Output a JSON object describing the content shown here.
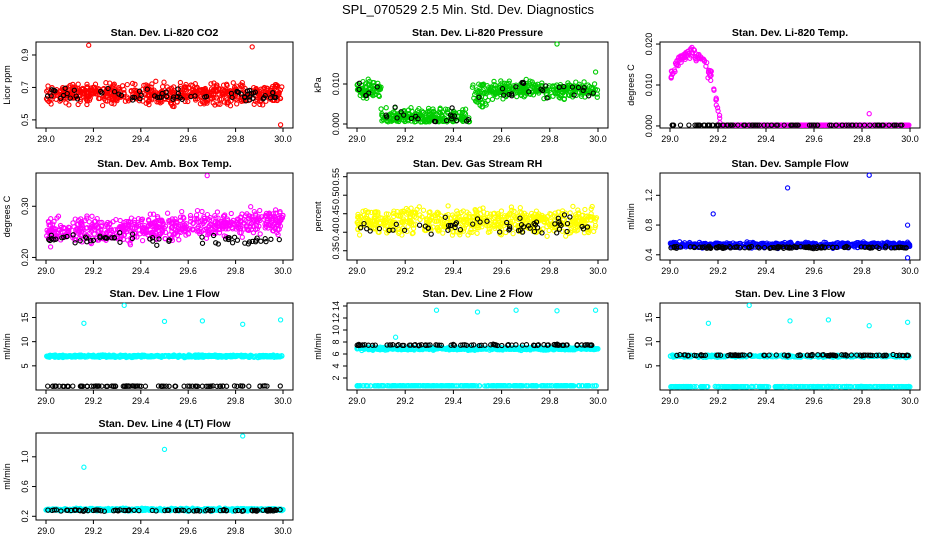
{
  "figure_title": "SPL_070529  2.5 Min. Std. Dev. Diagnostics",
  "colors": {
    "red": "#ff0000",
    "green": "#00cc00",
    "magenta": "#ff00ff",
    "yellow": "#ffff00",
    "blue": "#0000ff",
    "cyan": "#00ffff",
    "black": "#000000"
  },
  "chart_data": [
    {
      "type": "scatter",
      "title": "Stan. Dev. Li-820 CO2",
      "ylabel": "Licor ppm",
      "xlim": [
        29.0,
        30.0
      ],
      "ylim": [
        0.45,
        0.98
      ],
      "xticks": [
        "29.0",
        "29.2",
        "29.4",
        "29.6",
        "29.8",
        "30.0"
      ],
      "yticks": [
        {
          "v": 0.5,
          "l": "0.5"
        },
        {
          "v": 0.7,
          "l": "0.7"
        },
        {
          "v": 0.9,
          "l": "0.9"
        }
      ],
      "series": [
        {
          "name": "main",
          "color": "red",
          "n": 620,
          "base": 0.66,
          "spread": 0.09,
          "outliers": [
            [
              29.18,
              0.96
            ],
            [
              29.87,
              0.95
            ],
            [
              29.99,
              0.47
            ]
          ]
        },
        {
          "name": "ref",
          "color": "black",
          "n": 70,
          "base": 0.65,
          "spread": 0.06
        }
      ]
    },
    {
      "type": "scatter",
      "title": "Stan. Dev. Li-820 Pressure",
      "ylabel": "kPa",
      "xlim": [
        29.0,
        30.0
      ],
      "ylim": [
        -0.001,
        0.0205
      ],
      "xticks": [
        "29.0",
        "29.2",
        "29.4",
        "29.6",
        "29.8",
        "30.0"
      ],
      "yticks": [
        {
          "v": 0.0,
          "l": "0.000"
        },
        {
          "v": 0.01,
          "l": "0.010"
        }
      ],
      "series": [
        {
          "name": "main",
          "color": "green",
          "n": 620,
          "pressure": true,
          "outliers": [
            [
              29.83,
              0.02
            ],
            [
              29.99,
              0.013
            ]
          ]
        },
        {
          "name": "ref",
          "color": "black",
          "n": 50,
          "pressure": true
        }
      ]
    },
    {
      "type": "scatter",
      "title": "Stan. Dev. Li-820 Temp.",
      "ylabel": "degrees C",
      "xlim": [
        29.0,
        30.0
      ],
      "ylim": [
        -0.0005,
        0.0205
      ],
      "xticks": [
        "29.0",
        "29.2",
        "29.4",
        "29.6",
        "29.8",
        "30.0"
      ],
      "yticks": [
        {
          "v": 0.0,
          "l": "0.000"
        },
        {
          "v": 0.01,
          "l": "0.010"
        },
        {
          "v": 0.02,
          "l": "0.020"
        }
      ],
      "series": [
        {
          "name": "main",
          "color": "magenta",
          "n": 420,
          "temp": true,
          "outliers": [
            [
              29.83,
              0.003
            ]
          ]
        },
        {
          "name": "ref",
          "color": "black",
          "n": 90,
          "flat": true
        }
      ]
    },
    {
      "type": "scatter",
      "title": "Stan. Dev. Amb. Box Temp.",
      "ylabel": "degrees C",
      "xlim": [
        29.0,
        30.0
      ],
      "ylim": [
        0.195,
        0.365
      ],
      "xticks": [
        "29.0",
        "29.2",
        "29.4",
        "29.6",
        "29.8",
        "30.0"
      ],
      "yticks": [
        {
          "v": 0.2,
          "l": "0.20"
        },
        {
          "v": 0.3,
          "l": "0.30"
        }
      ],
      "series": [
        {
          "name": "main",
          "color": "magenta",
          "n": 620,
          "base": 0.25,
          "spread": 0.035,
          "trend": 0.02,
          "outliers": [
            [
              29.68,
              0.36
            ]
          ]
        },
        {
          "name": "ref",
          "color": "black",
          "n": 60,
          "base": 0.235,
          "spread": 0.015
        }
      ]
    },
    {
      "type": "scatter",
      "title": "Stan. Dev. Gas Stream RH",
      "ylabel": "percent",
      "xlim": [
        29.0,
        30.0
      ],
      "ylim": [
        0.325,
        0.56
      ],
      "xticks": [
        "29.0",
        "29.2",
        "29.4",
        "29.6",
        "29.8",
        "30.0"
      ],
      "yticks": [
        {
          "v": 0.35,
          "l": "0.35"
        },
        {
          "v": 0.4,
          "l": "0.40"
        },
        {
          "v": 0.45,
          "l": "0.45"
        },
        {
          "v": 0.5,
          "l": "0.50"
        },
        {
          "v": 0.55,
          "l": "0.55"
        }
      ],
      "series": [
        {
          "name": "main",
          "color": "yellow",
          "n": 620,
          "base": 0.43,
          "spread": 0.05
        },
        {
          "name": "ref",
          "color": "black",
          "n": 60,
          "base": 0.42,
          "spread": 0.04
        }
      ]
    },
    {
      "type": "scatter",
      "title": "Stan. Dev. Sample Flow",
      "ylabel": "ml/min",
      "xlim": [
        29.0,
        30.0
      ],
      "ylim": [
        0.33,
        1.5
      ],
      "xticks": [
        "29.0",
        "29.2",
        "29.4",
        "29.6",
        "29.8",
        "30.0"
      ],
      "yticks": [
        {
          "v": 0.4,
          "l": "0.4"
        },
        {
          "v": 0.8,
          "l": "0.8"
        },
        {
          "v": 1.2,
          "l": "1.2"
        }
      ],
      "series": [
        {
          "name": "main",
          "color": "blue",
          "n": 620,
          "base": 0.53,
          "spread": 0.05,
          "outliers": [
            [
              29.18,
              0.95
            ],
            [
              29.49,
              1.3
            ],
            [
              29.83,
              1.47
            ],
            [
              29.99,
              0.36
            ],
            [
              29.99,
              0.8
            ]
          ]
        },
        {
          "name": "ref",
          "color": "black",
          "n": 120,
          "base": 0.5,
          "spread": 0.02
        }
      ]
    },
    {
      "type": "scatter",
      "title": "Stan. Dev. Line 1 Flow",
      "ylabel": "ml/min",
      "xlim": [
        29.0,
        30.0
      ],
      "ylim": [
        0,
        18
      ],
      "xticks": [
        "29.0",
        "29.2",
        "29.4",
        "29.6",
        "29.8",
        "30.0"
      ],
      "yticks": [
        {
          "v": 5,
          "l": "5"
        },
        {
          "v": 10,
          "l": "10"
        },
        {
          "v": 15,
          "l": "15"
        }
      ],
      "series": [
        {
          "name": "main",
          "color": "cyan",
          "n": 620,
          "base": 7.0,
          "spread": 0.35,
          "outliers": [
            [
              29.16,
              13.8
            ],
            [
              29.33,
              17.5
            ],
            [
              29.5,
              14.2
            ],
            [
              29.66,
              14.3
            ],
            [
              29.83,
              13.6
            ],
            [
              29.99,
              14.5
            ]
          ]
        },
        {
          "name": "ref",
          "color": "black",
          "n": 90,
          "base": 0.8,
          "spread": 0.08
        }
      ]
    },
    {
      "type": "scatter",
      "title": "Stan. Dev. Line 2 Flow",
      "ylabel": "ml/min",
      "xlim": [
        29.0,
        30.0
      ],
      "ylim": [
        0,
        14.5
      ],
      "xticks": [
        "29.0",
        "29.2",
        "29.4",
        "29.6",
        "29.8",
        "30.0"
      ],
      "yticks": [
        {
          "v": 2,
          "l": "2"
        },
        {
          "v": 4,
          "l": "4"
        },
        {
          "v": 6,
          "l": "6"
        },
        {
          "v": 8,
          "l": "8"
        },
        {
          "v": 10,
          "l": "10"
        },
        {
          "v": 12,
          "l": "12"
        },
        {
          "v": 14,
          "l": "14"
        }
      ],
      "series": [
        {
          "name": "main",
          "color": "cyan",
          "n": 620,
          "base": 6.9,
          "spread": 0.35,
          "outliers": [
            [
              29.16,
              8.8
            ],
            [
              29.33,
              13.3
            ],
            [
              29.5,
              13.0
            ],
            [
              29.66,
              13.3
            ],
            [
              29.83,
              13.2
            ],
            [
              29.99,
              13.3
            ]
          ]
        },
        {
          "name": "cyan-low",
          "color": "cyan",
          "n": 300,
          "base": 0.7,
          "spread": 0.05
        },
        {
          "name": "ref",
          "color": "black",
          "n": 90,
          "base": 7.5,
          "spread": 0.15
        }
      ]
    },
    {
      "type": "scatter",
      "title": "Stan. Dev. Line 3 Flow",
      "ylabel": "ml/min",
      "xlim": [
        29.0,
        30.0
      ],
      "ylim": [
        0,
        18
      ],
      "xticks": [
        "29.0",
        "29.2",
        "29.4",
        "29.6",
        "29.8",
        "30.0"
      ],
      "yticks": [
        {
          "v": 5,
          "l": "5"
        },
        {
          "v": 10,
          "l": "10"
        },
        {
          "v": 15,
          "l": "15"
        }
      ],
      "series": [
        {
          "name": "main",
          "color": "cyan",
          "n": 320,
          "base": 7.0,
          "spread": 0.35,
          "outliers": [
            [
              29.16,
              13.8
            ],
            [
              29.33,
              17.5
            ],
            [
              29.5,
              14.3
            ],
            [
              29.66,
              14.5
            ],
            [
              29.83,
              13.3
            ],
            [
              29.99,
              14.0
            ]
          ]
        },
        {
          "name": "cyan-low",
          "color": "cyan",
          "n": 300,
          "base": 0.7,
          "spread": 0.05
        },
        {
          "name": "ref",
          "color": "black",
          "n": 90,
          "base": 7.2,
          "spread": 0.2
        }
      ]
    },
    {
      "type": "scatter",
      "title": "Stan. Dev. Line 4 (LT) Flow",
      "ylabel": "ml/min",
      "xlim": [
        29.0,
        30.0
      ],
      "ylim": [
        0.15,
        1.32
      ],
      "xticks": [
        "29.0",
        "29.2",
        "29.4",
        "29.6",
        "29.8",
        "30.0"
      ],
      "yticks": [
        {
          "v": 0.2,
          "l": "0.2"
        },
        {
          "v": 0.6,
          "l": "0.6"
        },
        {
          "v": 1.0,
          "l": "1.0"
        }
      ],
      "series": [
        {
          "name": "main",
          "color": "cyan",
          "n": 620,
          "base": 0.29,
          "spread": 0.025,
          "outliers": [
            [
              29.16,
              0.86
            ],
            [
              29.5,
              1.1
            ],
            [
              29.83,
              1.28
            ]
          ]
        },
        {
          "name": "ref",
          "color": "black",
          "n": 90,
          "base": 0.28,
          "spread": 0.015
        }
      ]
    }
  ]
}
